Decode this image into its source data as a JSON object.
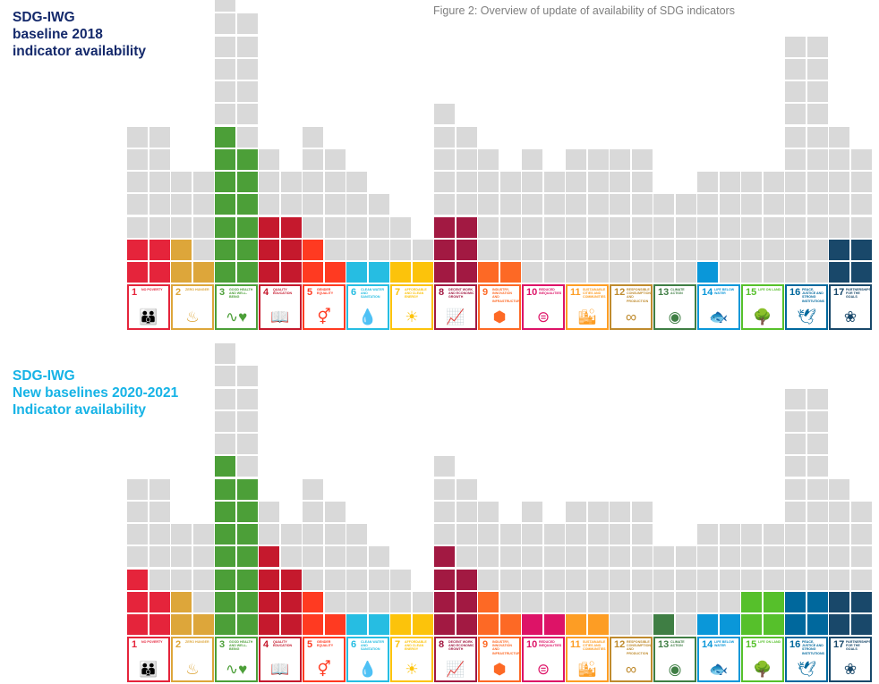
{
  "caption": "Figure 2: Overview of update of availability of SDG indicators",
  "chart_data": [
    {
      "type": "waffle-bar",
      "title_lines": [
        "SDG-IWG",
        "baseline 2018",
        "indicator availability"
      ],
      "title_color": "#14296b",
      "unavailable_color": "#d9d9d9",
      "note": "Each goal shown as two stacked columns of squares; colored squares = available indicators, grey = not available",
      "categories": [
        "1",
        "2",
        "3",
        "4",
        "5",
        "6",
        "7",
        "8",
        "9",
        "10",
        "11",
        "12",
        "13",
        "14",
        "15",
        "16",
        "17"
      ],
      "columns_total": [
        [
          7,
          7
        ],
        [
          5,
          5
        ],
        [
          13,
          12
        ],
        [
          6,
          5
        ],
        [
          7,
          6
        ],
        [
          5,
          4
        ],
        [
          3,
          2
        ],
        [
          8,
          7
        ],
        [
          6,
          5
        ],
        [
          6,
          5
        ],
        [
          6,
          6
        ],
        [
          6,
          6
        ],
        [
          4,
          4
        ],
        [
          5,
          5
        ],
        [
          5,
          5
        ],
        [
          11,
          11
        ],
        [
          7,
          6
        ]
      ],
      "columns_available": [
        [
          2,
          2
        ],
        [
          2,
          1
        ],
        [
          7,
          6
        ],
        [
          3,
          3
        ],
        [
          2,
          1
        ],
        [
          1,
          1
        ],
        [
          1,
          1
        ],
        [
          3,
          3
        ],
        [
          1,
          1
        ],
        [
          0,
          0
        ],
        [
          0,
          0
        ],
        [
          0,
          0
        ],
        [
          0,
          0
        ],
        [
          1,
          0
        ],
        [
          0,
          0
        ],
        [
          0,
          0
        ],
        [
          2,
          2
        ]
      ],
      "totals": [
        14,
        10,
        25,
        11,
        13,
        9,
        5,
        15,
        11,
        11,
        12,
        12,
        8,
        10,
        10,
        22,
        13
      ],
      "available": [
        4,
        3,
        13,
        6,
        3,
        2,
        2,
        6,
        2,
        0,
        0,
        0,
        0,
        1,
        0,
        0,
        4
      ]
    },
    {
      "type": "waffle-bar",
      "title_lines": [
        "SDG-IWG",
        "New baselines 2020-2021",
        "Indicator availability"
      ],
      "title_color": "#16b3e6",
      "unavailable_color": "#d9d9d9",
      "categories": [
        "1",
        "2",
        "3",
        "4",
        "5",
        "6",
        "7",
        "8",
        "9",
        "10",
        "11",
        "12",
        "13",
        "14",
        "15",
        "16",
        "17"
      ],
      "columns_total": [
        [
          7,
          7
        ],
        [
          5,
          5
        ],
        [
          13,
          12
        ],
        [
          6,
          5
        ],
        [
          7,
          6
        ],
        [
          5,
          4
        ],
        [
          3,
          2
        ],
        [
          8,
          7
        ],
        [
          6,
          5
        ],
        [
          6,
          5
        ],
        [
          6,
          6
        ],
        [
          6,
          6
        ],
        [
          4,
          4
        ],
        [
          5,
          5
        ],
        [
          5,
          5
        ],
        [
          11,
          11
        ],
        [
          7,
          6
        ]
      ],
      "columns_available": [
        [
          3,
          2
        ],
        [
          2,
          1
        ],
        [
          8,
          7
        ],
        [
          4,
          3
        ],
        [
          2,
          1
        ],
        [
          1,
          1
        ],
        [
          1,
          1
        ],
        [
          4,
          3
        ],
        [
          2,
          1
        ],
        [
          1,
          1
        ],
        [
          1,
          1
        ],
        [
          0,
          0
        ],
        [
          1,
          0
        ],
        [
          1,
          1
        ],
        [
          2,
          2
        ],
        [
          2,
          2
        ],
        [
          2,
          2
        ]
      ],
      "totals": [
        14,
        10,
        25,
        11,
        13,
        9,
        5,
        15,
        11,
        11,
        12,
        12,
        8,
        10,
        10,
        22,
        13
      ],
      "available": [
        5,
        3,
        15,
        7,
        3,
        2,
        2,
        7,
        3,
        2,
        2,
        0,
        1,
        2,
        4,
        4,
        4
      ]
    }
  ],
  "goals": [
    {
      "num": "1",
      "label": "No poverty",
      "color": "#e5243b",
      "icon": "family-icon",
      "glyph": "👪"
    },
    {
      "num": "2",
      "label": "Zero hunger",
      "color": "#dda63a",
      "icon": "bowl-icon",
      "glyph": "♨"
    },
    {
      "num": "3",
      "label": "Good health and well-being",
      "color": "#4c9f38",
      "icon": "heartbeat-icon",
      "glyph": "∿♥"
    },
    {
      "num": "4",
      "label": "Quality education",
      "color": "#c5192d",
      "icon": "book-icon",
      "glyph": "📖"
    },
    {
      "num": "5",
      "label": "Gender equality",
      "color": "#ff3a21",
      "icon": "gender-icon",
      "glyph": "⚥"
    },
    {
      "num": "6",
      "label": "Clean water and sanitation",
      "color": "#26bde2",
      "icon": "water-drop-icon",
      "glyph": "💧"
    },
    {
      "num": "7",
      "label": "Affordable and clean energy",
      "color": "#fcc30b",
      "icon": "sun-icon",
      "glyph": "☀"
    },
    {
      "num": "8",
      "label": "Decent work and economic growth",
      "color": "#a21942",
      "icon": "growth-chart-icon",
      "glyph": "📈"
    },
    {
      "num": "9",
      "label": "Industry, innovation and infrastructure",
      "color": "#fd6925",
      "icon": "cubes-icon",
      "glyph": "⬢"
    },
    {
      "num": "10",
      "label": "Reduced inequalities",
      "color": "#dd1367",
      "icon": "equals-icon",
      "glyph": "⊜"
    },
    {
      "num": "11",
      "label": "Sustainable cities and communities",
      "color": "#fd9d24",
      "icon": "buildings-icon",
      "glyph": "🏙"
    },
    {
      "num": "12",
      "label": "Responsible consumption and production",
      "color": "#bf8b2e",
      "icon": "infinity-icon",
      "glyph": "∞"
    },
    {
      "num": "13",
      "label": "Climate action",
      "color": "#3f7e44",
      "icon": "eye-globe-icon",
      "glyph": "◉"
    },
    {
      "num": "14",
      "label": "Life below water",
      "color": "#0a97d9",
      "icon": "fish-icon",
      "glyph": "🐟"
    },
    {
      "num": "15",
      "label": "Life on land",
      "color": "#56c02b",
      "icon": "tree-icon",
      "glyph": "🌳"
    },
    {
      "num": "16",
      "label": "Peace, justice and strong institutions",
      "color": "#00689d",
      "icon": "dove-gavel-icon",
      "glyph": "🕊"
    },
    {
      "num": "17",
      "label": "Partnerships for the goals",
      "color": "#19486a",
      "icon": "rings-icon",
      "glyph": "❀"
    }
  ]
}
